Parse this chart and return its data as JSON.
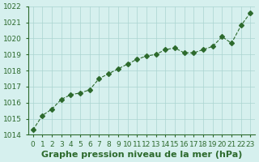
{
  "x": [
    0,
    1,
    2,
    3,
    4,
    5,
    6,
    7,
    8,
    9,
    10,
    11,
    12,
    13,
    14,
    15,
    16,
    17,
    18,
    19,
    20,
    21,
    22,
    23
  ],
  "y": [
    1014.3,
    1015.2,
    1015.6,
    1016.2,
    1016.5,
    1016.6,
    1016.8,
    1017.5,
    1017.8,
    1018.1,
    1018.4,
    1018.7,
    1018.9,
    1019.0,
    1019.3,
    1019.4,
    1019.1,
    1019.1,
    1019.3,
    1019.5,
    1020.1,
    1019.7,
    1020.8,
    1021.6
  ],
  "ylim": [
    1014,
    1022
  ],
  "xlim_min": -0.5,
  "xlim_max": 23.5,
  "yticks": [
    1014,
    1015,
    1016,
    1017,
    1018,
    1019,
    1020,
    1021,
    1022
  ],
  "xticks": [
    0,
    1,
    2,
    3,
    4,
    5,
    6,
    7,
    8,
    9,
    10,
    11,
    12,
    13,
    14,
    15,
    16,
    17,
    18,
    19,
    20,
    21,
    22,
    23
  ],
  "xlabel": "Graphe pression niveau de la mer (hPa)",
  "line_color": "#2d6a2d",
  "marker": "D",
  "marker_size": 3,
  "linewidth": 0.8,
  "bg_color": "#d6f0ee",
  "grid_color": "#aad4d0",
  "tick_label_fontsize": 6.5,
  "xlabel_fontsize": 8
}
